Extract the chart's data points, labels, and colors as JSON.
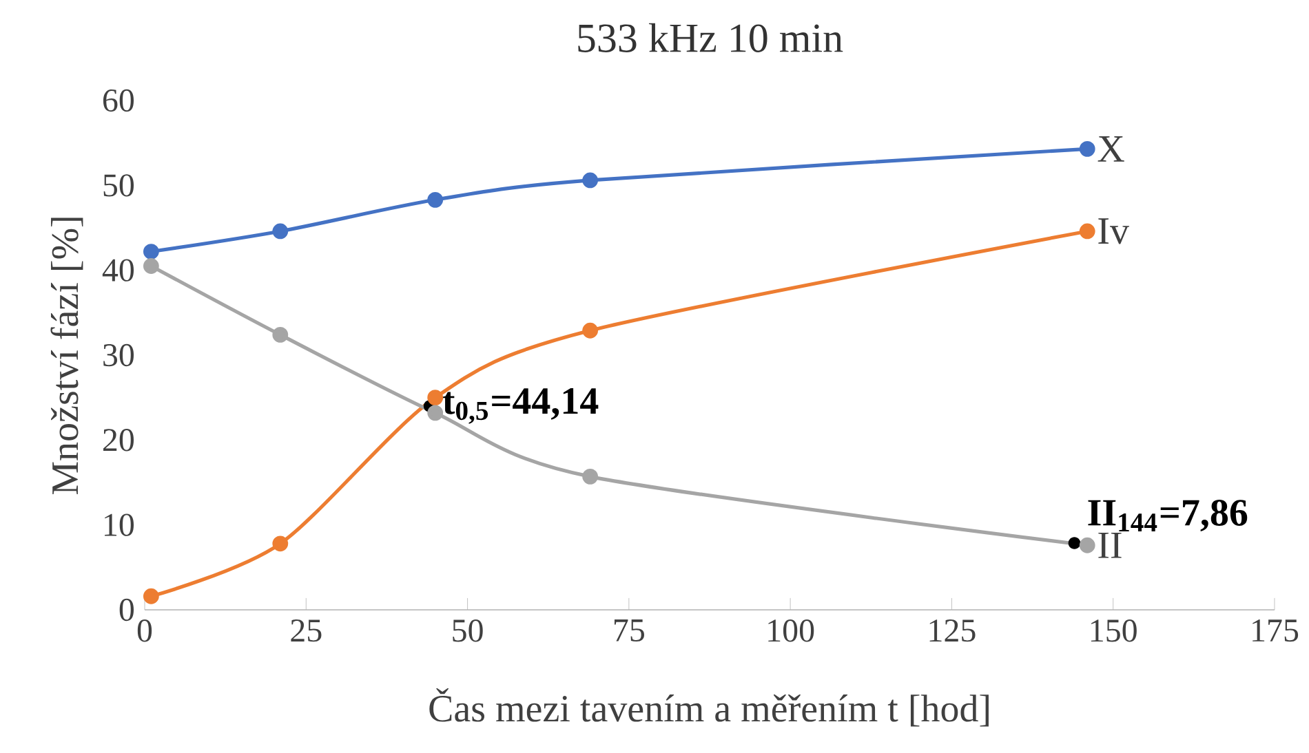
{
  "chart_data": {
    "type": "line",
    "title": "533 kHz 10 min",
    "xlabel": "Čas mezi tavením a měřením t [hod]",
    "ylabel": "Množství fází [%]",
    "x": [
      1,
      21,
      45,
      69,
      146
    ],
    "series": [
      {
        "name": "X",
        "color": "#4472c4",
        "values": [
          42.2,
          44.6,
          48.3,
          50.6,
          54.3
        ]
      },
      {
        "name": "Iv",
        "color": "#ed7d31",
        "values": [
          1.6,
          7.8,
          25.0,
          32.9,
          44.6
        ]
      },
      {
        "name": "II",
        "color": "#a5a5a5",
        "values": [
          40.5,
          32.4,
          23.2,
          15.7,
          7.6
        ]
      }
    ],
    "xlim": [
      0,
      175
    ],
    "xticks": [
      0,
      25,
      50,
      75,
      100,
      125,
      150,
      175
    ],
    "ylim": [
      0,
      60
    ],
    "yticks": [
      0,
      10,
      20,
      30,
      40,
      50,
      60
    ],
    "marker": "circle",
    "line_style": "solid",
    "grid": false,
    "legend": false,
    "annotations": [
      {
        "text": "t$_{0,5}$=44,14",
        "x": 44.14,
        "y": 24
      },
      {
        "text": "II$_{144}$=7,86",
        "x": 144,
        "y": 7.86
      }
    ]
  }
}
